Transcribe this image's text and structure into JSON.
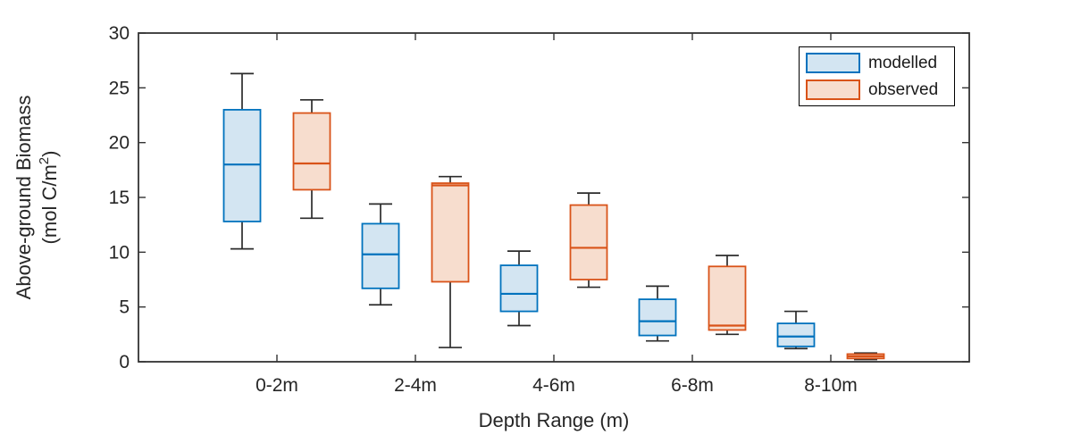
{
  "chart_data": {
    "type": "box",
    "title": "",
    "xlabel": "Depth Range (m)",
    "ylabel_line1": "Above-ground Biomass",
    "ylabel_unit_prefix": "(mol C/m",
    "ylabel_unit_sup": "2",
    "ylabel_unit_suffix": ")",
    "categories": [
      "0-2m",
      "2-4m",
      "4-6m",
      "6-8m",
      "8-10m"
    ],
    "y_ticks": [
      0,
      5,
      10,
      15,
      20,
      25,
      30
    ],
    "ylim": [
      0,
      30
    ],
    "grid": "off",
    "legend_position": "top-right-inside",
    "axis_color": "#333333",
    "whisker_color": "#2b2b2b",
    "series": [
      {
        "name": "modelled",
        "stroke": "#0072BD",
        "fill": "#D3E5F2",
        "boxes": [
          {
            "category": "0-2m",
            "whisker_low": 10.3,
            "q1": 12.8,
            "median": 18.0,
            "q3": 23.0,
            "whisker_high": 26.3
          },
          {
            "category": "2-4m",
            "whisker_low": 5.2,
            "q1": 6.7,
            "median": 9.8,
            "q3": 12.6,
            "whisker_high": 14.4
          },
          {
            "category": "4-6m",
            "whisker_low": 3.3,
            "q1": 4.6,
            "median": 6.2,
            "q3": 8.8,
            "whisker_high": 10.1
          },
          {
            "category": "6-8m",
            "whisker_low": 1.9,
            "q1": 2.4,
            "median": 3.7,
            "q3": 5.7,
            "whisker_high": 6.9
          },
          {
            "category": "8-10m",
            "whisker_low": 1.2,
            "q1": 1.4,
            "median": 2.3,
            "q3": 3.5,
            "whisker_high": 4.6
          }
        ]
      },
      {
        "name": "observed",
        "stroke": "#D95319",
        "fill": "#F7DDCE",
        "boxes": [
          {
            "category": "0-2m",
            "whisker_low": 13.1,
            "q1": 15.7,
            "median": 18.1,
            "q3": 22.7,
            "whisker_high": 23.9
          },
          {
            "category": "2-4m",
            "whisker_low": 1.3,
            "q1": 7.3,
            "median": 16.1,
            "q3": 16.3,
            "whisker_high": 16.9
          },
          {
            "category": "4-6m",
            "whisker_low": 6.8,
            "q1": 7.5,
            "median": 10.4,
            "q3": 14.3,
            "whisker_high": 15.4
          },
          {
            "category": "6-8m",
            "whisker_low": 2.5,
            "q1": 2.9,
            "median": 3.3,
            "q3": 8.7,
            "whisker_high": 9.7
          },
          {
            "category": "8-10m",
            "whisker_low": 0.2,
            "q1": 0.3,
            "median": 0.5,
            "q3": 0.7,
            "whisker_high": 0.8
          }
        ]
      }
    ]
  },
  "legend": {
    "items": [
      {
        "label": "modelled",
        "stroke": "#0072BD",
        "fill": "#D3E5F2"
      },
      {
        "label": "observed",
        "stroke": "#D95319",
        "fill": "#F7DDCE"
      }
    ]
  }
}
